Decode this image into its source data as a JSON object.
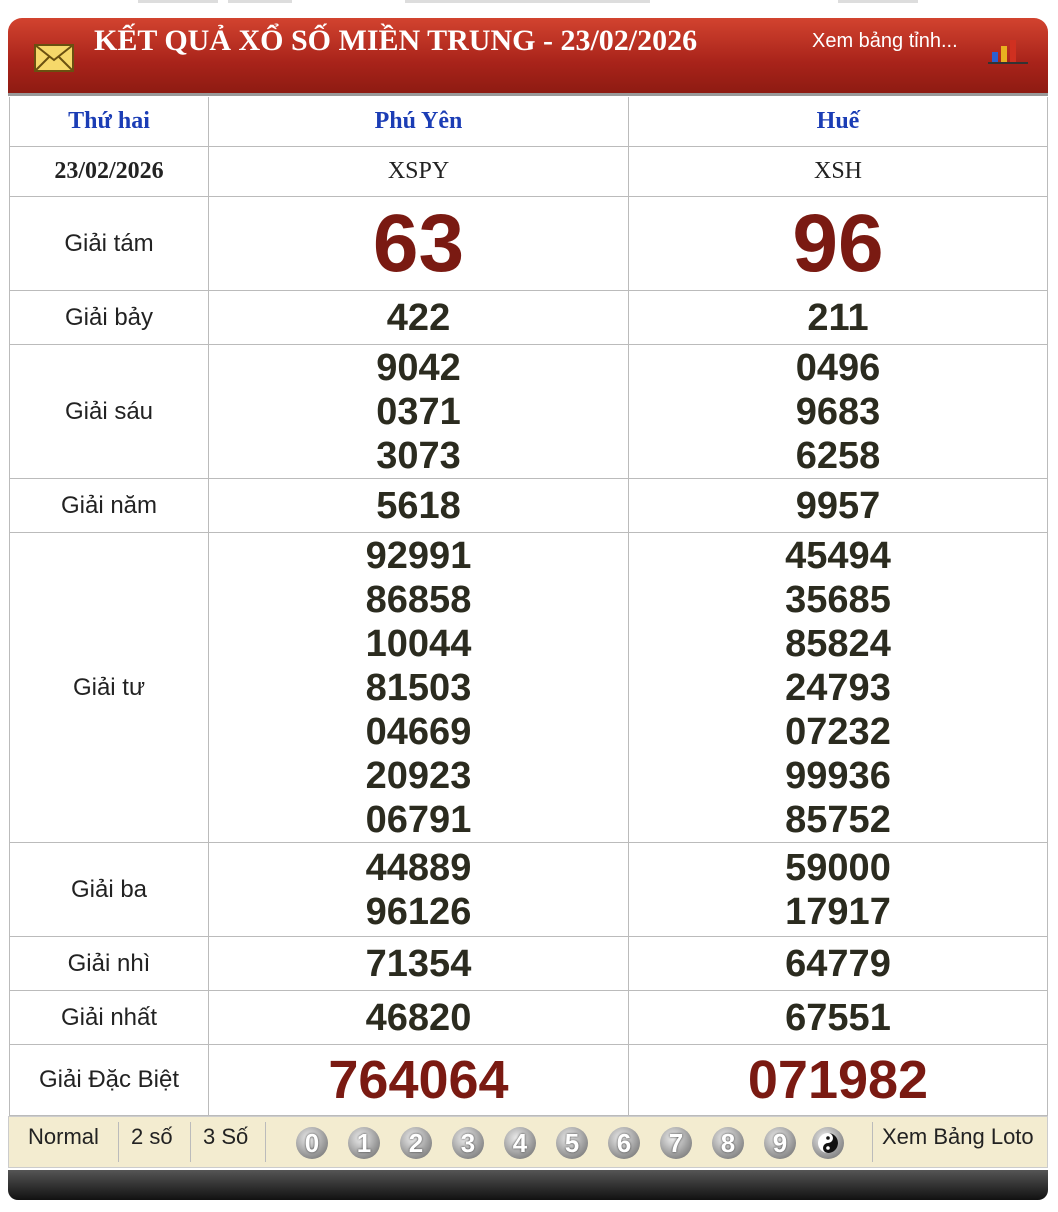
{
  "header": {
    "title": "KẾT QUẢ XỔ SỐ MIỀN TRUNG - 23/02/2026",
    "link": "Xem bảng tỉnh..."
  },
  "table": {
    "columns": [
      "Thứ hai",
      "Phú Yên",
      "Huế"
    ],
    "codes": [
      "23/02/2026",
      "XSPY",
      "XSH"
    ],
    "rows": [
      {
        "label": "Giải tám",
        "values": [
          [
            "63"
          ],
          [
            "96"
          ]
        ]
      },
      {
        "label": "Giải bảy",
        "values": [
          [
            "422"
          ],
          [
            "211"
          ]
        ]
      },
      {
        "label": "Giải sáu",
        "values": [
          [
            "9042",
            "0371",
            "3073"
          ],
          [
            "0496",
            "9683",
            "6258"
          ]
        ]
      },
      {
        "label": "Giải năm",
        "values": [
          [
            "5618"
          ],
          [
            "9957"
          ]
        ]
      },
      {
        "label": "Giải tư",
        "values": [
          [
            "92991",
            "86858",
            "10044",
            "81503",
            "04669",
            "20923",
            "06791"
          ],
          [
            "45494",
            "35685",
            "85824",
            "24793",
            "07232",
            "99936",
            "85752"
          ]
        ]
      },
      {
        "label": "Giải ba",
        "values": [
          [
            "44889",
            "96126"
          ],
          [
            "59000",
            "17917"
          ]
        ]
      },
      {
        "label": "Giải nhì",
        "values": [
          [
            "71354"
          ],
          [
            "64779"
          ]
        ]
      },
      {
        "label": "Giải nhất",
        "values": [
          [
            "46820"
          ],
          [
            "67551"
          ]
        ]
      },
      {
        "label": "Giải Đặc Biệt",
        "values": [
          [
            "764064"
          ],
          [
            "071982"
          ]
        ]
      }
    ]
  },
  "footer": {
    "modes": [
      "Normal",
      "2 số",
      "3 Số"
    ],
    "digits": [
      "0",
      "1",
      "2",
      "3",
      "4",
      "5",
      "6",
      "7",
      "8",
      "9"
    ],
    "link": "Xem Bảng Loto"
  }
}
